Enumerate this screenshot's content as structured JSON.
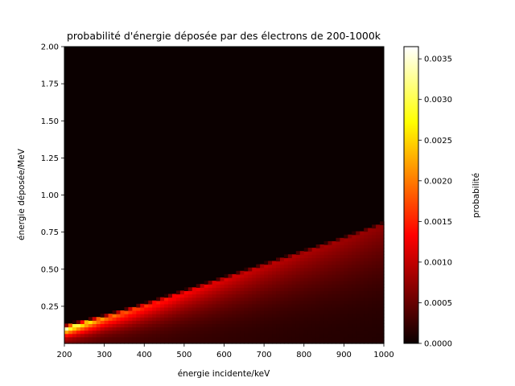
{
  "chart_data": {
    "type": "heatmap",
    "title": "probabilité d'énergie déposée par des électrons de 200-1000k",
    "xlabel": "énergie incidente/keV",
    "ylabel": "énergie déposée/MeV",
    "colorbar_label": "probabilité",
    "colormap": "hot",
    "xlim": [
      200,
      1000
    ],
    "ylim": [
      0.0,
      2.0
    ],
    "clim": [
      0.0,
      0.00365
    ],
    "x_ticks": [
      200,
      300,
      400,
      500,
      600,
      700,
      800,
      900,
      1000
    ],
    "y_ticks": [
      0.25,
      0.5,
      0.75,
      1.0,
      1.25,
      1.5,
      1.75,
      2.0
    ],
    "y_tick_labels": [
      "0.25",
      "0.50",
      "0.75",
      "1.00",
      "1.25",
      "1.50",
      "1.75",
      "2.00"
    ],
    "colorbar_ticks": [
      0.0,
      0.0005,
      0.001,
      0.0015,
      0.002,
      0.0025,
      0.003,
      0.0035
    ],
    "colorbar_tick_labels": [
      "0.0000",
      "0.0005",
      "0.0010",
      "0.0015",
      "0.0020",
      "0.0025",
      "0.0030",
      "0.0035"
    ],
    "edge_deposited_energy": [
      {
        "x": 200,
        "y": 0.1
      },
      {
        "x": 300,
        "y": 0.17
      },
      {
        "x": 400,
        "y": 0.25
      },
      {
        "x": 500,
        "y": 0.34
      },
      {
        "x": 600,
        "y": 0.43
      },
      {
        "x": 700,
        "y": 0.52
      },
      {
        "x": 800,
        "y": 0.61
      },
      {
        "x": 900,
        "y": 0.7
      },
      {
        "x": 1000,
        "y": 0.8
      }
    ],
    "peak_probability_at_edge": [
      {
        "x": 200,
        "p": 0.00365
      },
      {
        "x": 250,
        "p": 0.0028
      },
      {
        "x": 300,
        "p": 0.0021
      },
      {
        "x": 400,
        "p": 0.0016
      },
      {
        "x": 500,
        "p": 0.0013
      },
      {
        "x": 600,
        "p": 0.0011
      },
      {
        "x": 700,
        "p": 0.00095
      },
      {
        "x": 800,
        "p": 0.00085
      },
      {
        "x": 1000,
        "p": 0.0007
      }
    ]
  }
}
